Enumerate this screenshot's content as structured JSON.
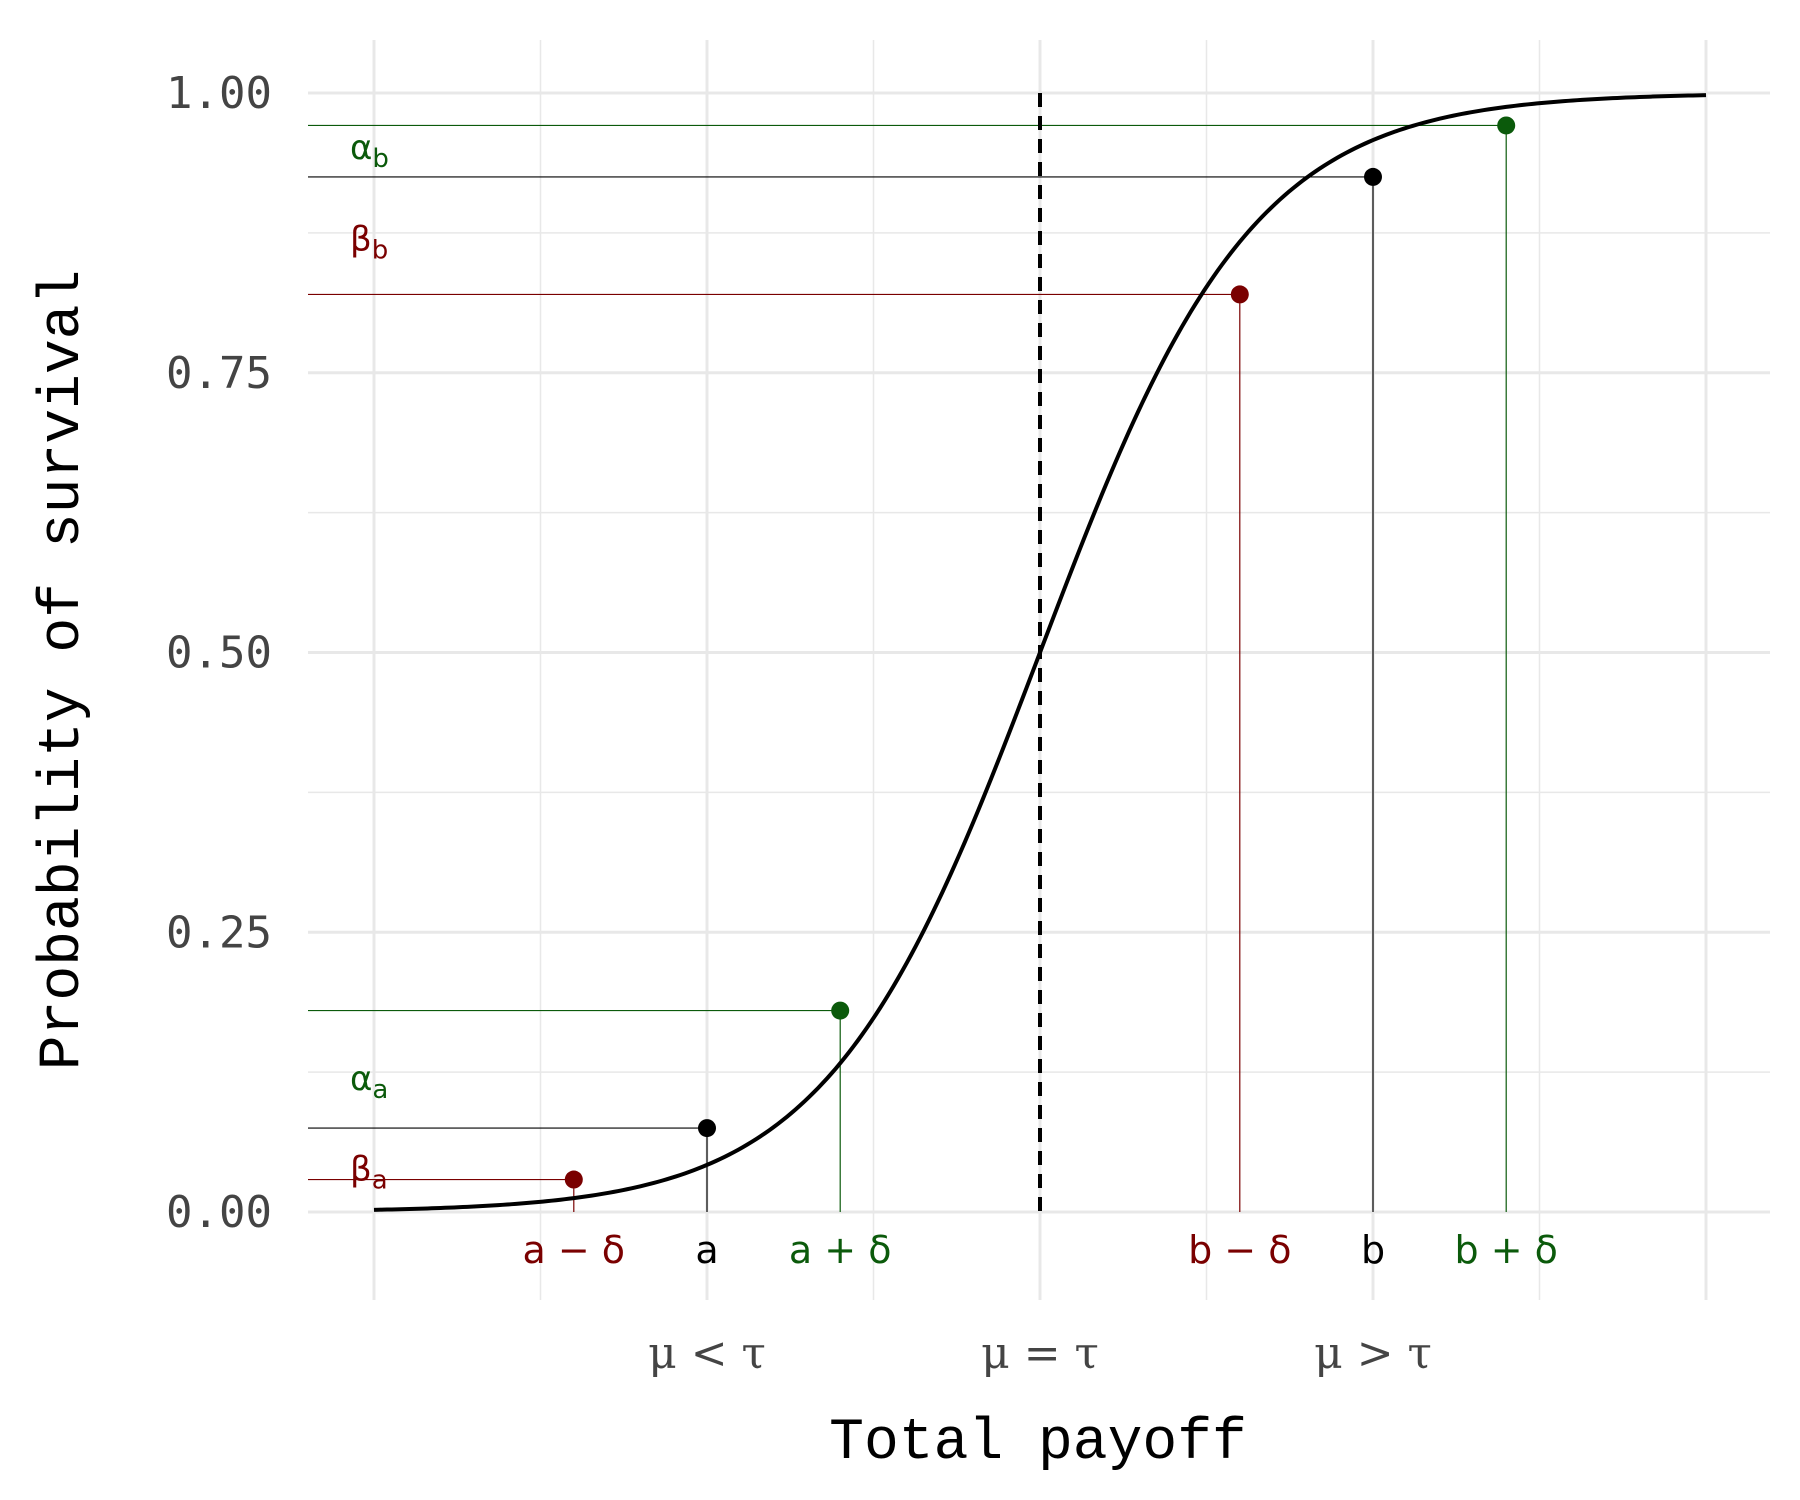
{
  "colors": {
    "black": "#000000",
    "red": "#7a0000",
    "green": "#0b5a0b",
    "grid": "#e8e8e8",
    "tick_text": "#444444"
  },
  "chart_data": {
    "type": "line",
    "xlabel": "Total payoff",
    "ylabel": "Probability of survival",
    "xlim": [
      -5,
      5
    ],
    "ylim": [
      0,
      1
    ],
    "y_ticks": [
      "0.00",
      "0.25",
      "0.50",
      "0.75",
      "1.00"
    ],
    "y_tick_values": [
      0,
      0.25,
      0.5,
      0.75,
      1
    ],
    "curve": {
      "x_range": [
        -5,
        5
      ],
      "center": 0,
      "scale": 0.8
    },
    "grid": true,
    "threshold_line": {
      "x": 0,
      "style": "dashed"
    },
    "points": [
      {
        "label": "a − δ",
        "x": -3.5,
        "y": 0.029,
        "color": "red"
      },
      {
        "label": "a",
        "x": -2.5,
        "y": 0.075,
        "color": "black"
      },
      {
        "label": "a + δ",
        "x": -1.5,
        "y": 0.18,
        "color": "green"
      },
      {
        "label": "b − δ",
        "x": 1.5,
        "y": 0.82,
        "color": "red"
      },
      {
        "label": "b",
        "x": 2.5,
        "y": 0.925,
        "color": "black"
      },
      {
        "label": "b + δ",
        "x": 3.5,
        "y": 0.971,
        "color": "green"
      }
    ],
    "greek_labels": [
      {
        "base": "α",
        "sub": "b",
        "y": 0.95,
        "color": "green"
      },
      {
        "base": "β",
        "sub": "b",
        "y": 0.868,
        "color": "red"
      },
      {
        "base": "α",
        "sub": "a",
        "y": 0.118,
        "color": "green"
      },
      {
        "base": "β",
        "sub": "a",
        "y": 0.037,
        "color": "red"
      }
    ],
    "regime_labels": [
      {
        "text": "μ < τ",
        "x": -2.5
      },
      {
        "text": "μ = τ",
        "x": 0
      },
      {
        "text": "μ > τ",
        "x": 2.5
      }
    ]
  }
}
